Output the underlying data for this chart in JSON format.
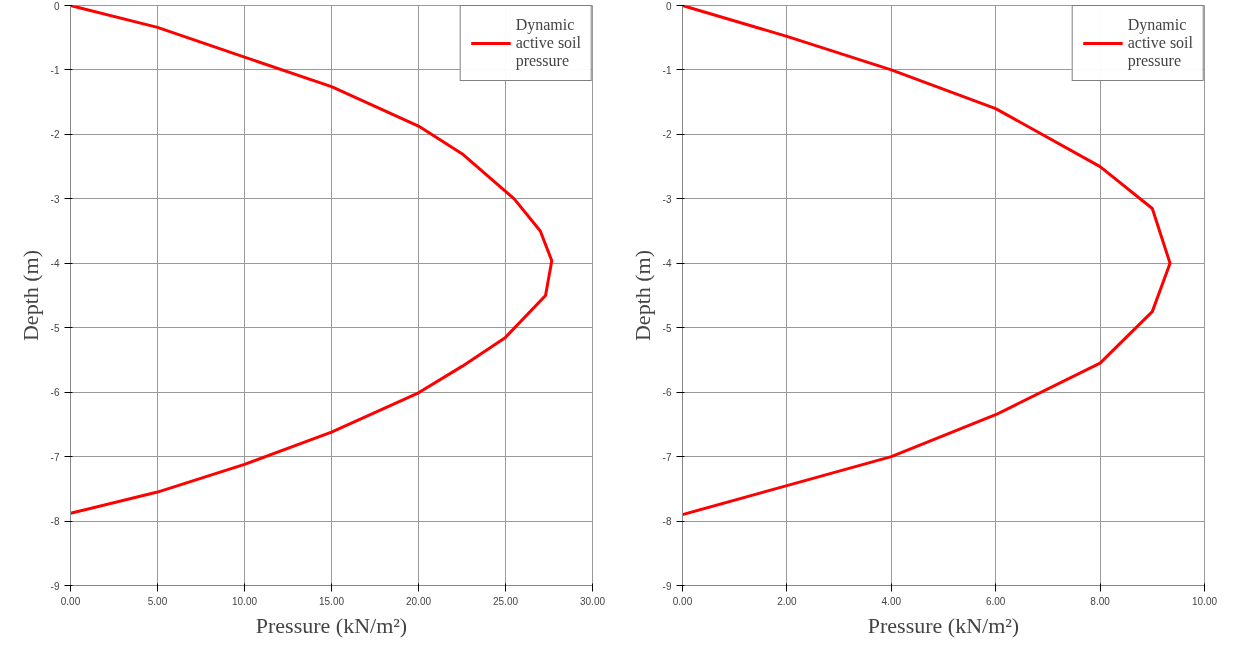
{
  "chart_data": [
    {
      "type": "line",
      "xlabel": "Pressure (kN/m²)",
      "ylabel": "Depth (m)",
      "legend": "top right",
      "grid": true,
      "line_style": "solid",
      "xlim": [
        0,
        30
      ],
      "ylim": [
        -9,
        0
      ],
      "xticks": [
        {
          "value": 0,
          "label": "0.00"
        },
        {
          "value": 5,
          "label": "5.00"
        },
        {
          "value": 10,
          "label": "10.00"
        },
        {
          "value": 15,
          "label": "15.00"
        },
        {
          "value": 20,
          "label": "20.00"
        },
        {
          "value": 25,
          "label": "25.00"
        },
        {
          "value": 30,
          "label": "30.00"
        }
      ],
      "yticks": [
        0,
        -1,
        -2,
        -3,
        -4,
        -5,
        -6,
        -7,
        -8,
        -9
      ],
      "series": [
        {
          "name": "Dynamic active soil pressure",
          "color": "#ff0000",
          "x": [
            0,
            5,
            10,
            15,
            20,
            22.5,
            25.5,
            27,
            27.66,
            27.3,
            25,
            22.5,
            20,
            15,
            10,
            5,
            0
          ],
          "values": [
            0,
            -0.34,
            -0.8,
            -1.26,
            -1.87,
            -2.3,
            -3.0,
            -3.5,
            -3.96,
            -4.5,
            -5.15,
            -5.6,
            -6.01,
            -6.62,
            -7.12,
            -7.55,
            -7.88
          ]
        }
      ]
    },
    {
      "type": "line",
      "xlabel": "Pressure (kN/m²)",
      "ylabel": "Depth (m)",
      "legend": "top right",
      "grid": true,
      "line_style": "solid",
      "xlim": [
        0,
        10
      ],
      "ylim": [
        -9,
        0
      ],
      "xticks": [
        {
          "value": 0,
          "label": "0.00"
        },
        {
          "value": 2,
          "label": "2.00"
        },
        {
          "value": 4,
          "label": "4.00"
        },
        {
          "value": 6,
          "label": "6.00"
        },
        {
          "value": 8,
          "label": "8.00"
        },
        {
          "value": 10,
          "label": "10.00"
        }
      ],
      "yticks": [
        0,
        -1,
        -2,
        -3,
        -4,
        -5,
        -6,
        -7,
        -8,
        -9
      ],
      "series": [
        {
          "name": "Dynamic active soil pressure",
          "color": "#ff0000",
          "x": [
            0,
            2,
            4,
            6,
            8,
            9,
            9.34,
            9,
            8,
            6,
            4,
            2,
            0
          ],
          "values": [
            0,
            -0.48,
            -1.0,
            -1.6,
            -2.5,
            -3.15,
            -4.0,
            -4.75,
            -5.55,
            -6.35,
            -7.0,
            -7.45,
            -7.9
          ]
        }
      ]
    }
  ]
}
